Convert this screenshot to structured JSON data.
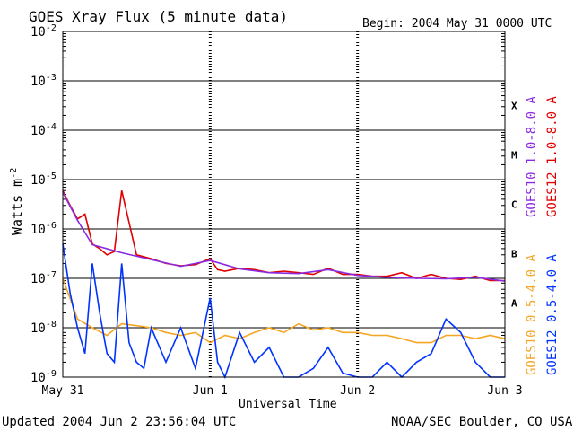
{
  "chart_data": {
    "type": "line",
    "title": "GOES Xray Flux (5 minute data)",
    "begin_label": "Begin:  2004 May 31 0000 UTC",
    "xlabel": "Universal Time",
    "ylabel": "Watts m",
    "ylabel_sup": "-2",
    "yscale": "log",
    "ylim": [
      1e-09,
      0.01
    ],
    "y_ticks": [
      {
        "base": "10",
        "exp": "-2",
        "value": 0.01
      },
      {
        "base": "10",
        "exp": "-3",
        "value": 0.001
      },
      {
        "base": "10",
        "exp": "-4",
        "value": 0.0001
      },
      {
        "base": "10",
        "exp": "-5",
        "value": 1e-05
      },
      {
        "base": "10",
        "exp": "-6",
        "value": 1e-06
      },
      {
        "base": "10",
        "exp": "-7",
        "value": 1e-07
      },
      {
        "base": "10",
        "exp": "-8",
        "value": 1e-08
      },
      {
        "base": "10",
        "exp": "-9",
        "value": 1e-09
      }
    ],
    "x_range_days": [
      0,
      3
    ],
    "x_ticks": [
      {
        "label": "May 31",
        "day": 0
      },
      {
        "label": "Jun 1",
        "day": 1
      },
      {
        "label": "Jun 2",
        "day": 2
      },
      {
        "label": "Jun 3",
        "day": 3
      }
    ],
    "flare_classes": [
      {
        "label": "X",
        "lo": 0.0001,
        "hi": 0.001
      },
      {
        "label": "M",
        "lo": 1e-05,
        "hi": 0.0001
      },
      {
        "label": "C",
        "lo": 1e-06,
        "hi": 1e-05
      },
      {
        "label": "B",
        "lo": 1e-07,
        "hi": 1e-06
      },
      {
        "label": "A",
        "lo": 1e-08,
        "hi": 1e-07
      }
    ],
    "grid": "horizontal lines at each decade",
    "legend": [
      {
        "label": "GOES10 1.0-8.0 A",
        "color": "#8a2be2",
        "column": "left"
      },
      {
        "label": "GOES12 1.0-8.0 A",
        "color": "#e00000",
        "column": "right"
      },
      {
        "label": "GOES10 0.5-4.0 A",
        "color": "#f5a623",
        "column": "left"
      },
      {
        "label": "GOES12 0.5-4.0 A",
        "color": "#0033ff",
        "column": "right"
      }
    ],
    "series": [
      {
        "name": "GOES12 1.0-8.0 A",
        "color": "#e00000",
        "x": [
          0.0,
          0.02,
          0.05,
          0.1,
          0.15,
          0.2,
          0.25,
          0.3,
          0.35,
          0.4,
          0.5,
          0.6,
          0.7,
          0.8,
          0.9,
          1.0,
          1.05,
          1.1,
          1.2,
          1.3,
          1.4,
          1.5,
          1.6,
          1.7,
          1.8,
          1.9,
          2.0,
          2.1,
          2.2,
          2.3,
          2.4,
          2.5,
          2.6,
          2.7,
          2.8,
          2.9,
          3.0
        ],
        "y": [
          6e-06,
          4.5e-06,
          3e-06,
          1.6e-06,
          2e-06,
          5e-07,
          4e-07,
          3e-07,
          3.5e-07,
          6e-06,
          3e-07,
          2.5e-07,
          2e-07,
          1.8e-07,
          1.9e-07,
          2.5e-07,
          1.5e-07,
          1.4e-07,
          1.6e-07,
          1.5e-07,
          1.3e-07,
          1.4e-07,
          1.3e-07,
          1.2e-07,
          1.6e-07,
          1.2e-07,
          1.2e-07,
          1.1e-07,
          1.1e-07,
          1.3e-07,
          1e-07,
          1.2e-07,
          1e-07,
          9.5e-08,
          1.1e-07,
          9e-08,
          9e-08
        ]
      },
      {
        "name": "GOES10 1.0-8.0 A",
        "color": "#8a2be2",
        "x": [
          0.0,
          0.1,
          0.2,
          0.4,
          0.6,
          0.8,
          1.0,
          1.2,
          1.4,
          1.6,
          1.8,
          2.0,
          2.2,
          2.4,
          2.6,
          2.8,
          3.0
        ],
        "y": [
          5.5e-06,
          1.5e-06,
          4.8e-07,
          3.3e-07,
          2.4e-07,
          1.75e-07,
          2.3e-07,
          1.55e-07,
          1.3e-07,
          1.25e-07,
          1.5e-07,
          1.15e-07,
          1.05e-07,
          1e-07,
          9.8e-08,
          1.05e-07,
          8.8e-08
        ]
      },
      {
        "name": "GOES10 0.5-4.0 A",
        "color": "#f5a623",
        "x": [
          0.0,
          0.1,
          0.2,
          0.3,
          0.4,
          0.5,
          0.6,
          0.7,
          0.8,
          0.9,
          1.0,
          1.1,
          1.2,
          1.3,
          1.4,
          1.5,
          1.6,
          1.7,
          1.8,
          1.9,
          2.0,
          2.1,
          2.2,
          2.3,
          2.4,
          2.5,
          2.6,
          2.7,
          2.8,
          2.9,
          3.0
        ],
        "y": [
          1e-07,
          1.5e-08,
          1e-08,
          7e-09,
          1.2e-08,
          1.1e-08,
          1e-08,
          8e-09,
          7e-09,
          8e-09,
          5e-09,
          7e-09,
          6e-09,
          8e-09,
          1e-08,
          8e-09,
          1.2e-08,
          9e-09,
          1e-08,
          8e-09,
          8e-09,
          7e-09,
          7e-09,
          6e-09,
          5e-09,
          5e-09,
          7e-09,
          7e-09,
          6e-09,
          7e-09,
          6e-09
        ]
      },
      {
        "name": "GOES12 0.5-4.0 A",
        "color": "#0033ff",
        "x": [
          0.0,
          0.05,
          0.1,
          0.15,
          0.2,
          0.25,
          0.3,
          0.35,
          0.4,
          0.45,
          0.5,
          0.55,
          0.6,
          0.7,
          0.8,
          0.9,
          1.0,
          1.05,
          1.1,
          1.2,
          1.3,
          1.4,
          1.5,
          1.6,
          1.7,
          1.8,
          1.9,
          2.0,
          2.1,
          2.2,
          2.3,
          2.4,
          2.5,
          2.6,
          2.7,
          2.8,
          2.9,
          3.0
        ],
        "y": [
          5e-07,
          5e-08,
          1e-08,
          3e-09,
          2e-07,
          2e-08,
          3e-09,
          2e-09,
          2e-07,
          5e-09,
          2e-09,
          1.5e-09,
          1e-08,
          2e-09,
          1e-08,
          1.5e-09,
          4e-08,
          2e-09,
          1e-09,
          8e-09,
          2e-09,
          4e-09,
          1e-09,
          1e-09,
          1.5e-09,
          4e-09,
          1.2e-09,
          1e-09,
          1e-09,
          2e-09,
          1e-09,
          2e-09,
          3e-09,
          1.5e-08,
          8e-09,
          2e-09,
          1e-09,
          1e-09
        ]
      }
    ]
  },
  "footer": {
    "updated": "Updated 2004 Jun  2 23:56:04 UTC",
    "source": "NOAA/SEC Boulder, CO USA"
  }
}
